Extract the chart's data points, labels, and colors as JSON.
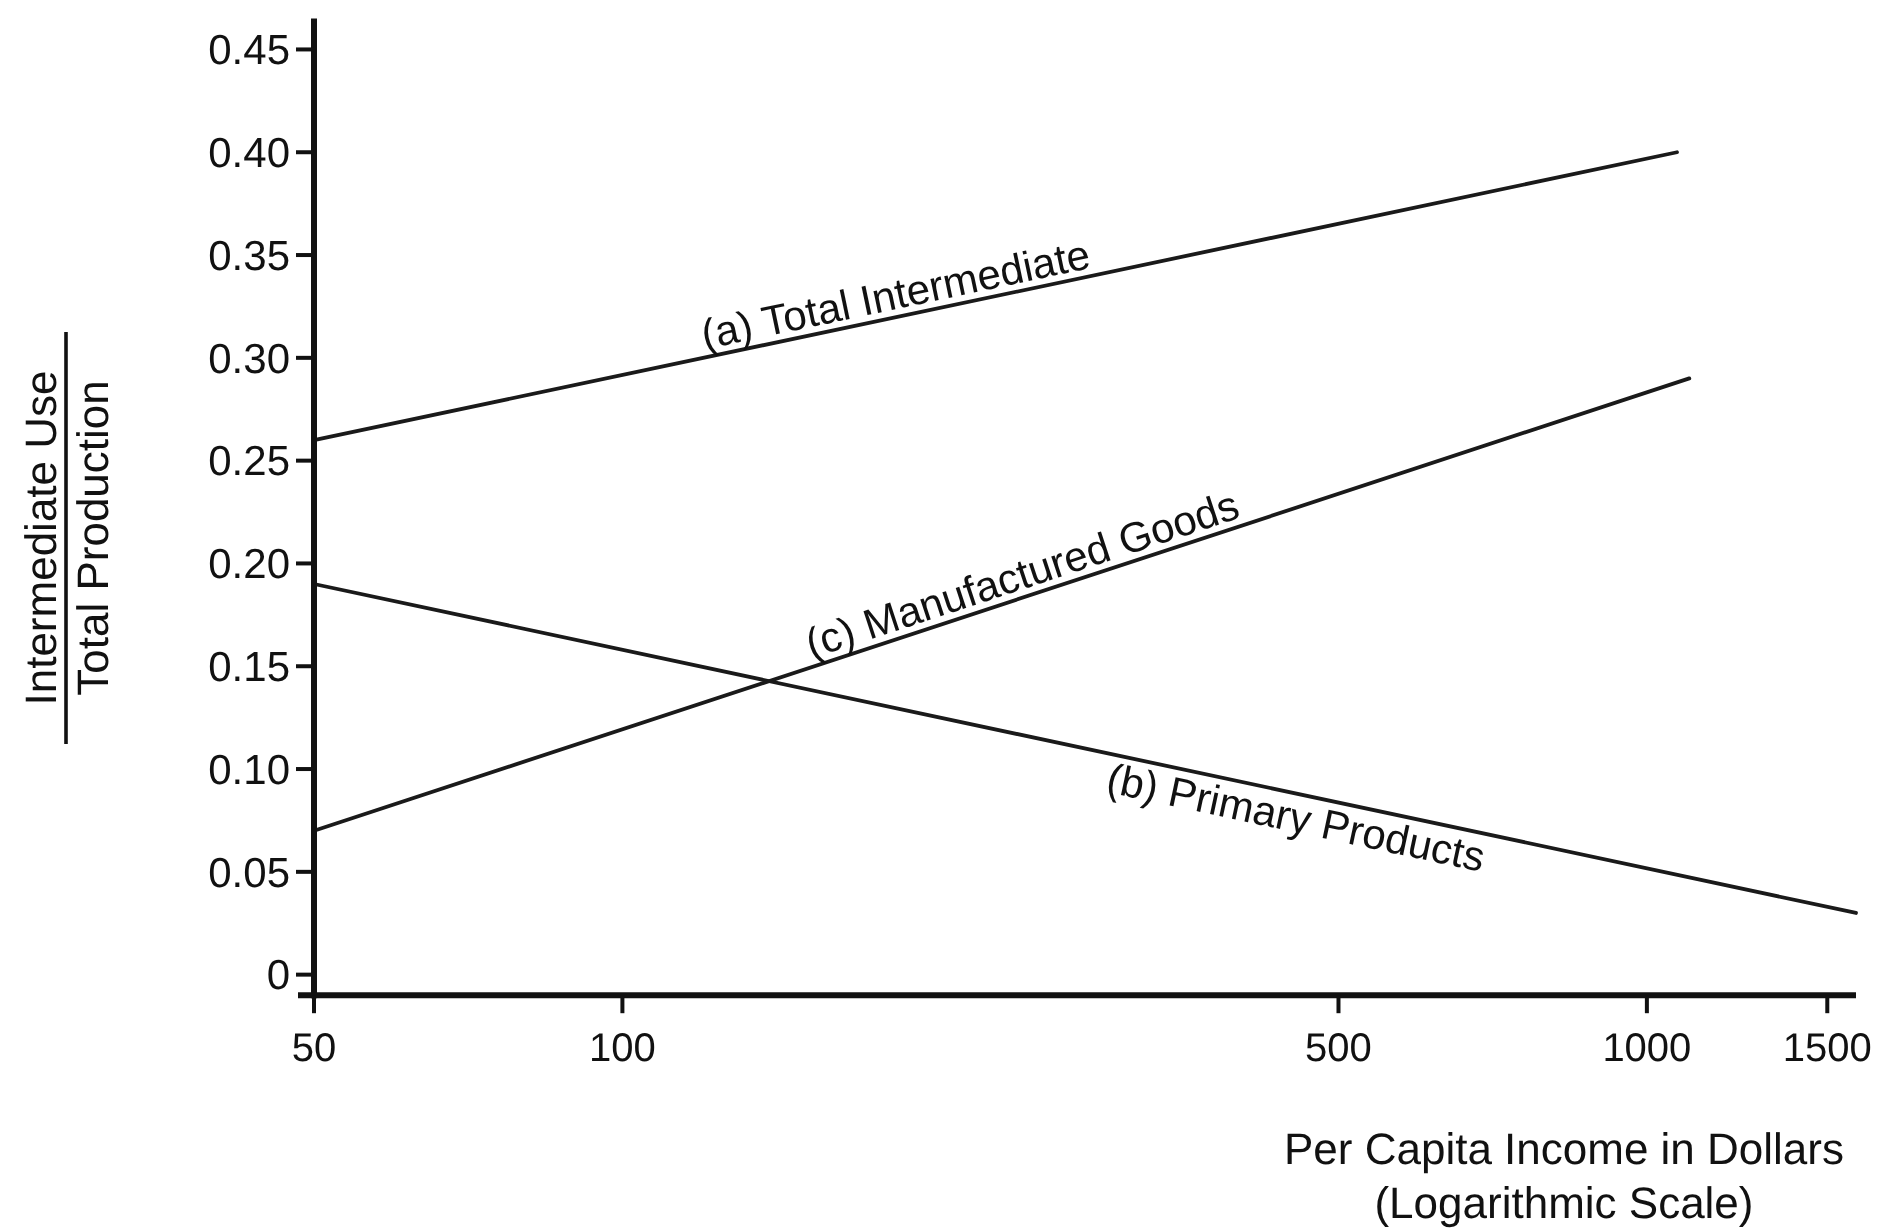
{
  "chart_data": {
    "type": "line",
    "xlabel": "Per Capita Income in Dollars\n(Logarithmic Scale)",
    "ylabel": "Intermediate Use\nTotal Production",
    "log": "x",
    "xlim": [
      50,
      1600
    ],
    "ylim": [
      -0.01,
      0.465
    ],
    "xticks": [
      50,
      100,
      500,
      1000,
      1500
    ],
    "yticks": [
      0,
      0.05,
      {
        "value": 0.1,
        "label": "0.10"
      },
      0.15,
      {
        "value": 0.2,
        "label": "0.20"
      },
      0.25,
      {
        "value": 0.3,
        "label": "0.30"
      },
      0.35,
      {
        "value": 0.4,
        "label": "0.40"
      },
      0.45
    ],
    "line_style": "solid",
    "series": [
      {
        "name": "(a) Total Intermediate",
        "color": "#1a1a1a",
        "x": [
          50,
          1070
        ],
        "values": [
          0.26,
          0.4
        ]
      },
      {
        "name": "(b) Primary Products",
        "color": "#1a1a1a",
        "x": [
          50,
          1600
        ],
        "values": [
          0.19,
          0.03
        ]
      },
      {
        "name": "(c) Manufactured Goods",
        "color": "#1a1a1a",
        "x": [
          50,
          1100
        ],
        "values": [
          0.07,
          0.29
        ]
      }
    ]
  }
}
